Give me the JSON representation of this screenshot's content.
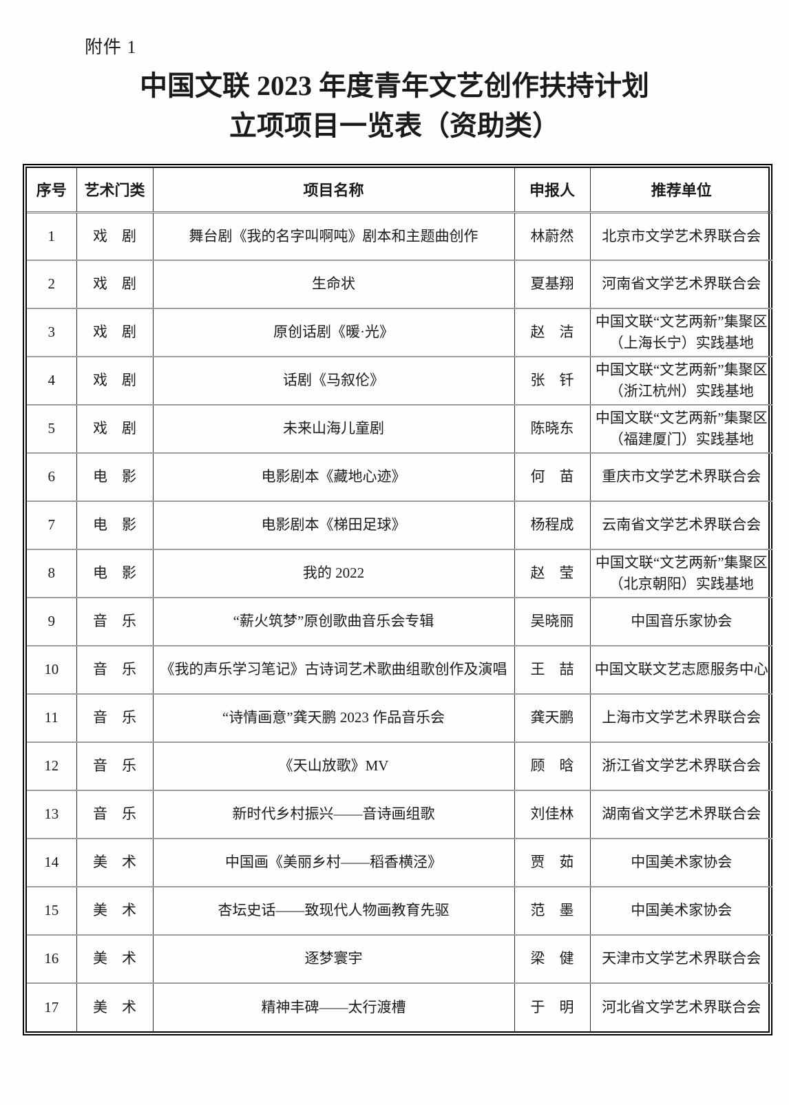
{
  "attachment_label": "附件 1",
  "title_line1": "中国文联 2023 年度青年文艺创作扶持计划",
  "title_line2": "立项项目一览表（资助类）",
  "table": {
    "headers": [
      "序号",
      "艺术门类",
      "项目名称",
      "申报人",
      "推荐单位"
    ],
    "rows": [
      {
        "no": "1",
        "category": "戏　剧",
        "project": "舞台剧《我的名字叫啊吨》剧本和主题曲创作",
        "applicant": "林蔚然",
        "recommender": "北京市文学艺术界联合会"
      },
      {
        "no": "2",
        "category": "戏　剧",
        "project": "生命状",
        "applicant": "夏基翔",
        "recommender": "河南省文学艺术界联合会"
      },
      {
        "no": "3",
        "category": "戏　剧",
        "project": "原创话剧《暖·光》",
        "applicant": "赵　洁",
        "recommender": "中国文联“文艺两新”集聚区（上海长宁）实践基地"
      },
      {
        "no": "4",
        "category": "戏　剧",
        "project": "话剧《马叙伦》",
        "applicant": "张　钎",
        "recommender": "中国文联“文艺两新”集聚区（浙江杭州）实践基地"
      },
      {
        "no": "5",
        "category": "戏　剧",
        "project": "未来山海儿童剧",
        "applicant": "陈晓东",
        "recommender": "中国文联“文艺两新”集聚区（福建厦门）实践基地"
      },
      {
        "no": "6",
        "category": "电　影",
        "project": "电影剧本《藏地心迹》",
        "applicant": "何　苗",
        "recommender": "重庆市文学艺术界联合会"
      },
      {
        "no": "7",
        "category": "电　影",
        "project": "电影剧本《梯田足球》",
        "applicant": "杨程成",
        "recommender": "云南省文学艺术界联合会"
      },
      {
        "no": "8",
        "category": "电　影",
        "project": "我的 2022",
        "applicant": "赵　莹",
        "recommender": "中国文联“文艺两新”集聚区（北京朝阳）实践基地"
      },
      {
        "no": "9",
        "category": "音　乐",
        "project": "“薪火筑梦”原创歌曲音乐会专辑",
        "applicant": "吴晓丽",
        "recommender": "中国音乐家协会"
      },
      {
        "no": "10",
        "category": "音　乐",
        "project": "《我的声乐学习笔记》古诗词艺术歌曲组歌创作及演唱",
        "applicant": "王　喆",
        "recommender": "中国文联文艺志愿服务中心"
      },
      {
        "no": "11",
        "category": "音　乐",
        "project": "“诗情画意”龚天鹏 2023 作品音乐会",
        "applicant": "龚天鹏",
        "recommender": "上海市文学艺术界联合会"
      },
      {
        "no": "12",
        "category": "音　乐",
        "project": "《天山放歌》MV",
        "applicant": "顾　晗",
        "recommender": "浙江省文学艺术界联合会"
      },
      {
        "no": "13",
        "category": "音　乐",
        "project": "新时代乡村振兴——音诗画组歌",
        "applicant": "刘佳林",
        "recommender": "湖南省文学艺术界联合会"
      },
      {
        "no": "14",
        "category": "美　术",
        "project": "中国画《美丽乡村——稻香横泾》",
        "applicant": "贾　茹",
        "recommender": "中国美术家协会"
      },
      {
        "no": "15",
        "category": "美　术",
        "project": "杏坛史话——致现代人物画教育先驱",
        "applicant": "范　墨",
        "recommender": "中国美术家协会"
      },
      {
        "no": "16",
        "category": "美　术",
        "project": "逐梦寰宇",
        "applicant": "梁　健",
        "recommender": "天津市文学艺术界联合会"
      },
      {
        "no": "17",
        "category": "美　术",
        "project": "精神丰碑——太行渡槽",
        "applicant": "于　明",
        "recommender": "河北省文学艺术界联合会"
      }
    ]
  }
}
